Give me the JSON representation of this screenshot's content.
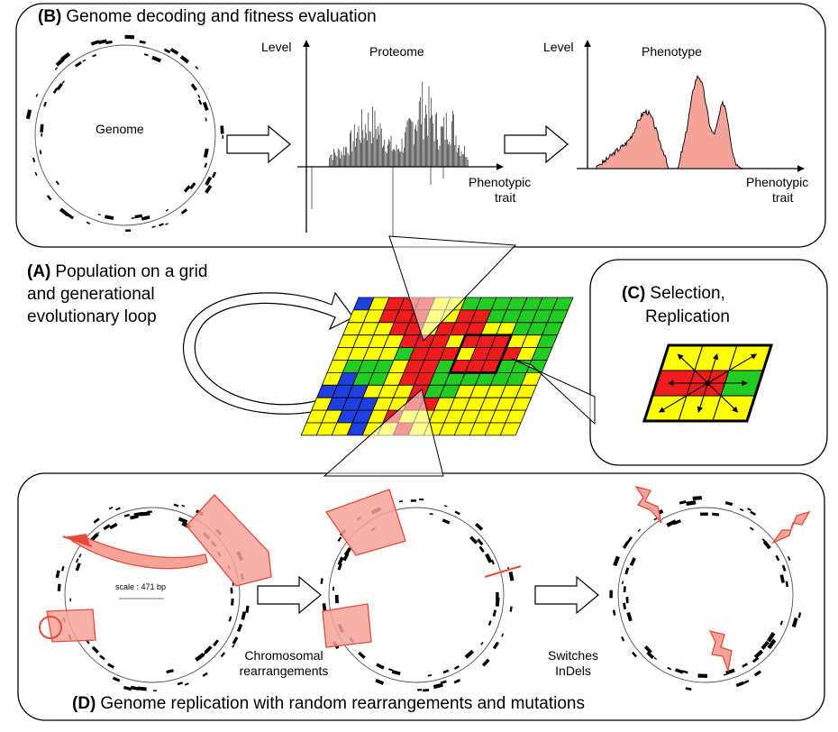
{
  "panels": {
    "A": {
      "letter": "(A)",
      "title_lines": [
        "Population on a grid",
        "and generational",
        "evolutionary loop"
      ]
    },
    "B": {
      "letter": "(B)",
      "title": "Genome decoding and fitness evaluation"
    },
    "C": {
      "letter": "(C)",
      "title_lines": [
        "Selection,",
        "Replication"
      ]
    },
    "D": {
      "letter": "(D)",
      "title": "Genome replication with random rearrangements and mutations"
    }
  },
  "genome_label": "Genome",
  "proteome": {
    "title": "Proteome",
    "ylabel": "Level",
    "xlabel_lines": [
      "Phenotypic",
      "trait"
    ]
  },
  "phenotype": {
    "title": "Phenotype",
    "ylabel": "Level",
    "xlabel_lines": [
      "Phenotypic",
      "trait"
    ]
  },
  "scale_label": "scale : 471 bp",
  "step_labels": {
    "rearrangements": [
      "Chromosomal",
      "rearrangements"
    ],
    "mutations": [
      "Switches",
      "InDels"
    ]
  },
  "colors": {
    "red": "#ee1c1c",
    "yellow": "#ffff00",
    "green": "#22cc22",
    "blue": "#1f3fe0",
    "salmon": "#f5a49a",
    "salmon_stroke": "#e84a3a"
  },
  "grid": [
    "BYRRRYYGGGGGGG",
    "YYRRRYYRRGGGGG",
    "YYYRRYRRRYYGGG",
    "YYYYRRRYRRRYYG",
    "YYYYGRRRYRRRYG",
    "YGGGYRRGRRRGGG",
    "YBGGYRRGGGGGGY",
    "BBBYYYRGGYYYYY",
    "YBBBYYRRYYYYYY",
    "YYBBYRYYYYYYYY",
    "YYYBYYRYYYYYYY"
  ]
}
